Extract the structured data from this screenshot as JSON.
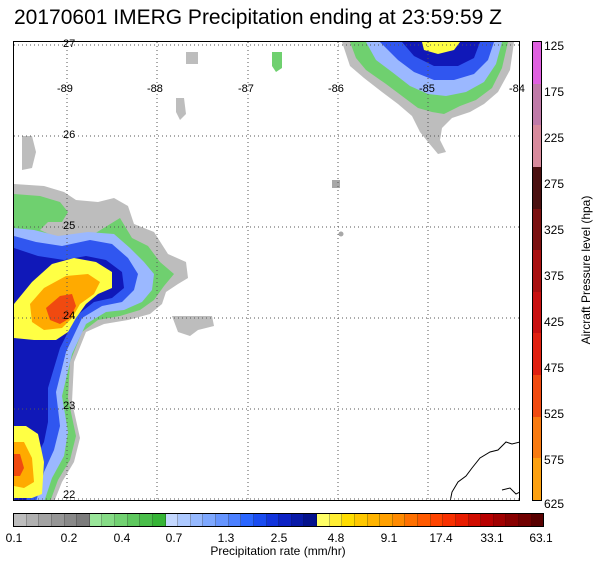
{
  "title": "20170601 IMERG Precipitation ending at 23:59:59 Z",
  "map": {
    "lat_labels": [
      "27",
      "26",
      "25",
      "24",
      "23",
      "22"
    ],
    "lon_labels": [
      "-89",
      "-88",
      "-87",
      "-86",
      "-85",
      "-84"
    ],
    "gridline_color": "#555555"
  },
  "pressure_bar": {
    "title": "Aircraft Pressure level (hpa)",
    "ticks": [
      "125",
      "175",
      "225",
      "275",
      "325",
      "375",
      "425",
      "475",
      "525",
      "575",
      "625"
    ],
    "colors": [
      "#e060e0",
      "#c07aa8",
      "#d88a9c",
      "#4a1010",
      "#7a1010",
      "#a81010",
      "#c81010",
      "#e02010",
      "#f04a10",
      "#f87a10",
      "#fca010"
    ]
  },
  "precip_bar": {
    "title": "Precipitation rate (mm/hr)",
    "ticks": [
      "0.1",
      "0.2",
      "0.4",
      "0.7",
      "1.3",
      "2.5",
      "4.8",
      "9.1",
      "17.4",
      "33.1",
      "63.1"
    ],
    "colors": [
      "#bdbdbd",
      "#b0b0b0",
      "#a3a3a3",
      "#969696",
      "#898989",
      "#7c7c7c",
      "#9ae69a",
      "#86dc86",
      "#72d272",
      "#5ec85e",
      "#4abe4a",
      "#36b436",
      "#c4d8ff",
      "#adc9ff",
      "#96b9ff",
      "#7ea8ff",
      "#6695ff",
      "#4c80ff",
      "#2a66ff",
      "#1a4cf0",
      "#1234dc",
      "#0c22c4",
      "#081aa8",
      "#04128c",
      "#ffff66",
      "#ffee33",
      "#ffdd00",
      "#ffc800",
      "#ffb400",
      "#ffa000",
      "#ff8a00",
      "#ff7000",
      "#ff5a00",
      "#ff4400",
      "#f83000",
      "#e81c00",
      "#d00c00",
      "#b80000",
      "#a00000",
      "#880000",
      "#700000",
      "#580000"
    ]
  }
}
